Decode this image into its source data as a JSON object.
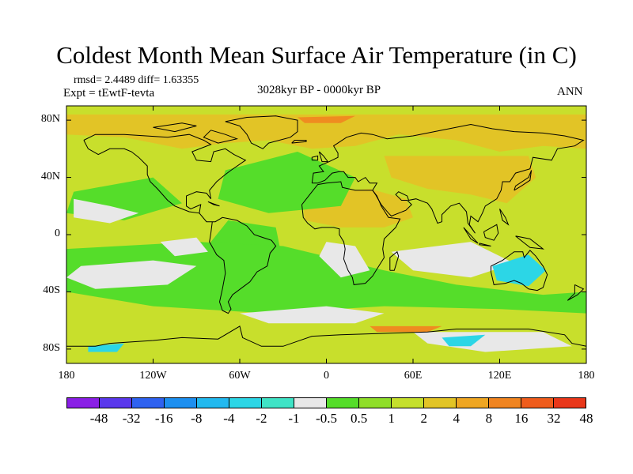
{
  "title": "Coldest Month Mean Surface Air Temperature (in C)",
  "stats": {
    "line1": "rmsd= 2.4489 diff= 1.63355",
    "line2": "Expt = tEwtF-tevta"
  },
  "period": "3028kyr BP - 0000kyr BP",
  "season": "ANN",
  "axes": {
    "y_ticks": [
      {
        "value": 80,
        "label": "80N"
      },
      {
        "value": 40,
        "label": "40N"
      },
      {
        "value": 0,
        "label": "0"
      },
      {
        "value": -40,
        "label": "40S"
      },
      {
        "value": -80,
        "label": "80S"
      }
    ],
    "x_ticks": [
      {
        "value": -180,
        "label": "180"
      },
      {
        "value": -120,
        "label": "120W"
      },
      {
        "value": -60,
        "label": "60W"
      },
      {
        "value": 0,
        "label": "0"
      },
      {
        "value": 60,
        "label": "60E"
      },
      {
        "value": 120,
        "label": "120E"
      },
      {
        "value": 180,
        "label": "180"
      }
    ]
  },
  "colorbar": {
    "colors": [
      "#8a1fe6",
      "#5a38ec",
      "#2f62f0",
      "#1d8ff0",
      "#22b9ef",
      "#2cd6e6",
      "#3fe3c6",
      "#e8e8e8",
      "#55dd2a",
      "#8fde2a",
      "#c5df2c",
      "#e2c426",
      "#efa622",
      "#f08420",
      "#ef5c1c",
      "#e9371a"
    ],
    "labels": [
      "-48",
      "-32",
      "-16",
      "-8",
      "-4",
      "-2",
      "-1",
      "-0.5",
      "0.5",
      "1",
      "2",
      "4",
      "8",
      "16",
      "32",
      "48"
    ]
  },
  "field": {
    "background": "#c8df2c",
    "patches": [
      {
        "c": "#e2c426",
        "pts": [
          [
            -180,
            84
          ],
          [
            180,
            84
          ],
          [
            180,
            60
          ],
          [
            150,
            62
          ],
          [
            120,
            58
          ],
          [
            90,
            66
          ],
          [
            50,
            70
          ],
          [
            20,
            62
          ],
          [
            -10,
            60
          ],
          [
            -40,
            66
          ],
          [
            -70,
            64
          ],
          [
            -100,
            60
          ],
          [
            -140,
            68
          ],
          [
            -180,
            70
          ]
        ]
      },
      {
        "c": "#e2c426",
        "pts": [
          [
            40,
            55
          ],
          [
            140,
            55
          ],
          [
            145,
            40
          ],
          [
            125,
            22
          ],
          [
            100,
            28
          ],
          [
            70,
            32
          ],
          [
            45,
            40
          ]
        ]
      },
      {
        "c": "#e2c426",
        "pts": [
          [
            -17,
            28
          ],
          [
            30,
            32
          ],
          [
            55,
            25
          ],
          [
            60,
            12
          ],
          [
            40,
            5
          ],
          [
            10,
            5
          ],
          [
            -15,
            10
          ]
        ]
      },
      {
        "c": "#55dd2a",
        "pts": [
          [
            -68,
            10
          ],
          [
            -35,
            5
          ],
          [
            -30,
            -20
          ],
          [
            -50,
            -35
          ],
          [
            -70,
            -25
          ],
          [
            -80,
            -5
          ]
        ]
      },
      {
        "c": "#55dd2a",
        "pts": [
          [
            -70,
            45
          ],
          [
            -20,
            58
          ],
          [
            20,
            40
          ],
          [
            10,
            20
          ],
          [
            -40,
            15
          ],
          [
            -75,
            25
          ]
        ]
      },
      {
        "c": "#55dd2a",
        "pts": [
          [
            -175,
            30
          ],
          [
            -120,
            40
          ],
          [
            -100,
            22
          ],
          [
            -140,
            10
          ],
          [
            -180,
            15
          ]
        ]
      },
      {
        "c": "#55dd2a",
        "pts": [
          [
            -90,
            -5
          ],
          [
            -30,
            -8
          ],
          [
            40,
            -25
          ],
          [
            90,
            -35
          ],
          [
            150,
            -42
          ],
          [
            180,
            -40
          ],
          [
            180,
            -55
          ],
          [
            120,
            -52
          ],
          [
            40,
            -50
          ],
          [
            -40,
            -55
          ],
          [
            -120,
            -50
          ],
          [
            -180,
            -40
          ],
          [
            -180,
            -10
          ]
        ]
      },
      {
        "c": "#e8e8e8",
        "pts": [
          [
            -175,
            25
          ],
          [
            -150,
            20
          ],
          [
            -130,
            15
          ],
          [
            -150,
            8
          ],
          [
            -175,
            12
          ]
        ]
      },
      {
        "c": "#e8e8e8",
        "pts": [
          [
            -170,
            -22
          ],
          [
            -120,
            -18
          ],
          [
            -90,
            -22
          ],
          [
            -110,
            -35
          ],
          [
            -160,
            -38
          ],
          [
            -180,
            -30
          ]
        ]
      },
      {
        "c": "#e8e8e8",
        "pts": [
          [
            -115,
            -5
          ],
          [
            -90,
            -2
          ],
          [
            -82,
            -12
          ],
          [
            -105,
            -15
          ]
        ]
      },
      {
        "c": "#e8e8e8",
        "pts": [
          [
            -60,
            -55
          ],
          [
            0,
            -50
          ],
          [
            40,
            -55
          ],
          [
            20,
            -62
          ],
          [
            -40,
            -62
          ]
        ]
      },
      {
        "c": "#e8e8e8",
        "pts": [
          [
            0,
            -5
          ],
          [
            20,
            -8
          ],
          [
            30,
            -25
          ],
          [
            10,
            -30
          ],
          [
            -5,
            -15
          ]
        ]
      },
      {
        "c": "#e8e8e8",
        "pts": [
          [
            45,
            -12
          ],
          [
            100,
            -5
          ],
          [
            130,
            -20
          ],
          [
            100,
            -30
          ],
          [
            60,
            -25
          ]
        ]
      },
      {
        "c": "#e8e8e8",
        "pts": [
          [
            60,
            -68
          ],
          [
            150,
            -68
          ],
          [
            170,
            -78
          ],
          [
            110,
            -82
          ],
          [
            70,
            -76
          ]
        ]
      },
      {
        "c": "#2cd6e6",
        "pts": [
          [
            115,
            -22
          ],
          [
            140,
            -14
          ],
          [
            152,
            -25
          ],
          [
            140,
            -36
          ],
          [
            118,
            -32
          ]
        ]
      },
      {
        "c": "#2cd6e6",
        "pts": [
          [
            -165,
            -78
          ],
          [
            -140,
            -76
          ],
          [
            -145,
            -82
          ],
          [
            -165,
            -82
          ]
        ]
      },
      {
        "c": "#2cd6e6",
        "pts": [
          [
            80,
            -72
          ],
          [
            110,
            -70
          ],
          [
            100,
            -78
          ],
          [
            85,
            -78
          ]
        ]
      },
      {
        "c": "#ef8c20",
        "pts": [
          [
            -20,
            82
          ],
          [
            20,
            83
          ],
          [
            10,
            78
          ],
          [
            -15,
            78
          ]
        ]
      },
      {
        "c": "#ef8c20",
        "pts": [
          [
            30,
            -64
          ],
          [
            80,
            -64
          ],
          [
            70,
            -68
          ],
          [
            35,
            -68
          ]
        ]
      }
    ]
  }
}
